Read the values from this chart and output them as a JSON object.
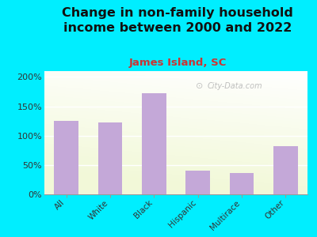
{
  "title": "Change in non-family household\nincome between 2000 and 2022",
  "subtitle": "James Island, SC",
  "categories": [
    "All",
    "White",
    "Black",
    "Hispanic",
    "Multirace",
    "Other"
  ],
  "values": [
    125,
    122,
    172,
    40,
    36,
    82
  ],
  "bar_color": "#c4a8d8",
  "title_fontsize": 11.5,
  "subtitle_fontsize": 9.5,
  "subtitle_color": "#cc3333",
  "title_color": "#111111",
  "bg_outer": "#00eeff",
  "ylim": [
    0,
    210
  ],
  "yticks": [
    0,
    50,
    100,
    150,
    200
  ],
  "watermark": "City-Data.com"
}
